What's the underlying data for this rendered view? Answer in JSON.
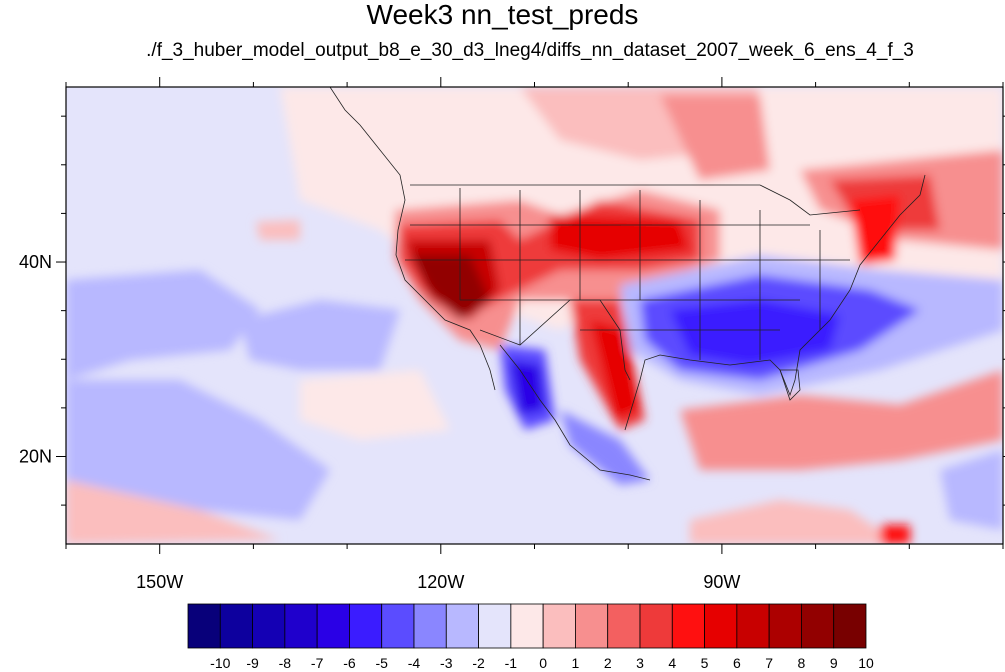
{
  "title": "Week3 nn_test_preds",
  "subtitle": "./f_3_huber_model_output_b8_e_30_d3_lneg4/diffs_nn_dataset_2007_week_6_ens_4_f_3",
  "map": {
    "lon_range": [
      -160,
      -60
    ],
    "lat_range": [
      11,
      58
    ],
    "lon_ticks": [
      {
        "lon": -150,
        "label": "150W"
      },
      {
        "lon": -120,
        "label": "120W"
      },
      {
        "lon": -90,
        "label": "90W"
      }
    ],
    "lat_ticks": [
      {
        "lat": 40,
        "label": "40N"
      },
      {
        "lat": 20,
        "label": "20N"
      }
    ]
  },
  "colorbar": {
    "levels": [
      "-10",
      "-9",
      "-8",
      "-7",
      "-6",
      "-5",
      "-4",
      "-3",
      "-2",
      "-1",
      "0",
      "1",
      "2",
      "3",
      "4",
      "5",
      "6",
      "7",
      "8",
      "9",
      "10"
    ],
    "colors": [
      "#08007a",
      "#0d009e",
      "#1400b4",
      "#1f00cc",
      "#2a00e6",
      "#3b1cff",
      "#5b4cff",
      "#8a86ff",
      "#b8b8ff",
      "#e4e4fb",
      "#fde8e8",
      "#fbbebe",
      "#f78f8f",
      "#f36060",
      "#ee3a3a",
      "#ff1010",
      "#e60000",
      "#c80000",
      "#ac0000",
      "#920000",
      "#780000"
    ]
  }
}
